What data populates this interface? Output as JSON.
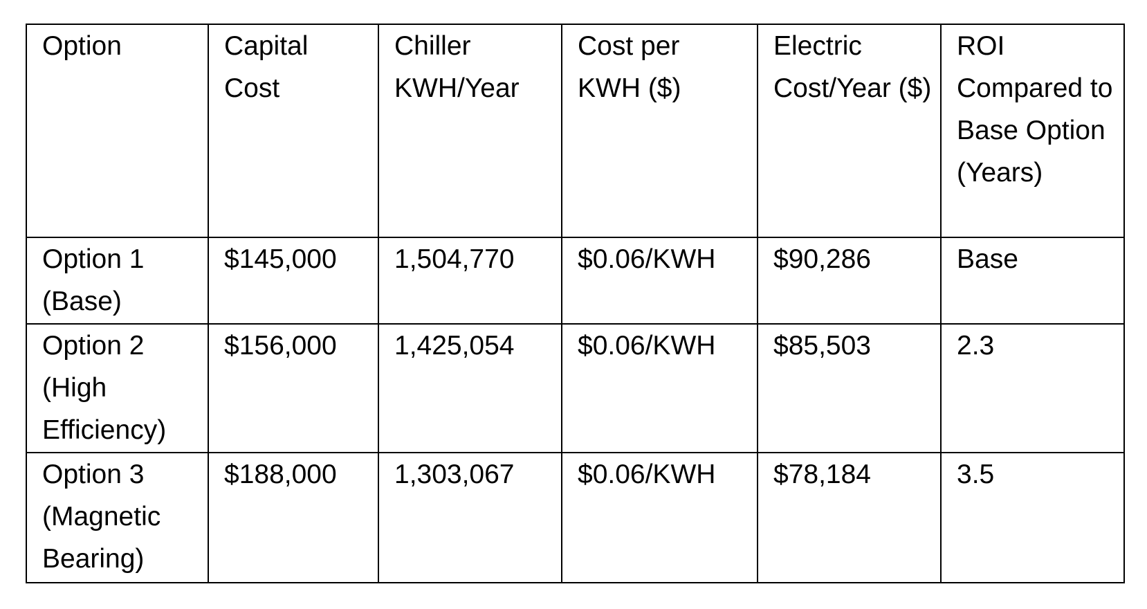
{
  "table": {
    "header": [
      "Option",
      "Capital Cost",
      "Chiller KWH/Year",
      "Cost per KWH ($)",
      "Electric Cost/Year ($)",
      "ROI Compared to Base Option (Years)"
    ],
    "rows": [
      [
        "Option 1 (Base)",
        "$145,000",
        "1,504,770",
        "$0.06/KWH",
        "$90,286",
        "Base"
      ],
      [
        "Option 2 (High Efficiency)",
        "$156,000",
        "1,425,054",
        "$0.06/KWH",
        "$85,503",
        "2.3"
      ],
      [
        "Option 3 (Magnetic Bearing)",
        "$188,000",
        "1,303,067",
        "$0.06/KWH",
        "$78,184",
        "3.5"
      ]
    ]
  }
}
